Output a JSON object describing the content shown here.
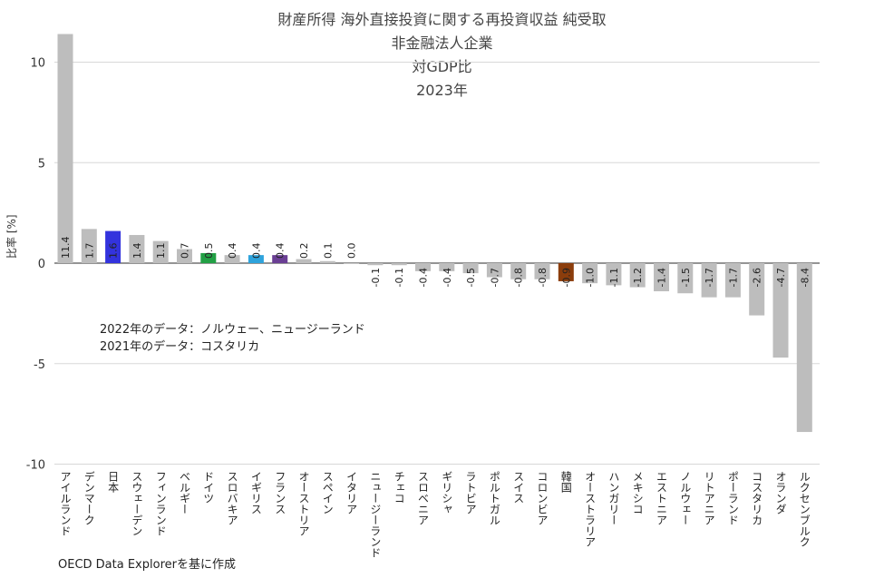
{
  "title_lines": [
    "財産所得 海外直接投資に関する再投資収益 純受取",
    "非金融法人企業",
    "対GDP比",
    "2023年"
  ],
  "notes": [
    "2022年のデータ：ノルウェー、ニュージーランド",
    "2021年のデータ：コスタリカ"
  ],
  "source": "OECD Data Explorerを基に作成",
  "chart_data": {
    "type": "bar",
    "title": "財産所得 海外直接投資に関する再投資収益 純受取 非金融法人企業 対GDP比 2023年",
    "ylabel": "比率 [%]",
    "ylim": [
      -10,
      11.4
    ],
    "yticks": [
      10,
      5,
      0,
      -5,
      -10
    ],
    "grid": true,
    "categories": [
      "アイルランド",
      "デンマーク",
      "日本",
      "スウェーデン",
      "フィンランド",
      "ベルギー",
      "ドイツ",
      "スロバキア",
      "イギリス",
      "フランス",
      "オーストリア",
      "スペイン",
      "イタリア",
      "ニュージーランド",
      "チェコ",
      "スロベニア",
      "ギリシャ",
      "ラトビア",
      "ポルトガル",
      "スイス",
      "コロンビア",
      "韓国",
      "オーストラリア",
      "ハンガリー",
      "メキシコ",
      "エストニア",
      "ノルウェー",
      "リトアニア",
      "ポーランド",
      "コスタリカ",
      "オランダ",
      "ルクセンブルク"
    ],
    "values": [
      11.4,
      1.7,
      1.6,
      1.4,
      1.1,
      0.7,
      0.5,
      0.4,
      0.4,
      0.4,
      0.2,
      0.1,
      0.0,
      -0.1,
      -0.1,
      -0.4,
      -0.4,
      -0.5,
      -0.7,
      -0.8,
      -0.8,
      -0.9,
      -1.0,
      -1.1,
      -1.2,
      -1.4,
      -1.5,
      -1.7,
      -1.7,
      -2.6,
      -4.7,
      -8.4
    ],
    "value_labels": [
      "11.4",
      "1.7",
      "1.6",
      "1.4",
      "1.1",
      "0.7",
      "0.5",
      "0.4",
      "0.4",
      "0.4",
      "0.2",
      "0.1",
      "0.0",
      "-0.1",
      "-0.1",
      "-0.4",
      "-0.4",
      "-0.5",
      "-0.7",
      "-0.8",
      "-0.8",
      "-0.9",
      "-1.0",
      "-1.1",
      "-1.2",
      "-1.4",
      "-1.5",
      "-1.7",
      "-1.7",
      "-2.6",
      "-4.7",
      "-8.4"
    ],
    "colors": {
      "default": "#bdbdbd",
      "日本": "#3333dd",
      "ドイツ": "#22a045",
      "イギリス": "#2ea3dc",
      "フランス": "#6a3f94",
      "韓国": "#8b3d0c"
    }
  }
}
